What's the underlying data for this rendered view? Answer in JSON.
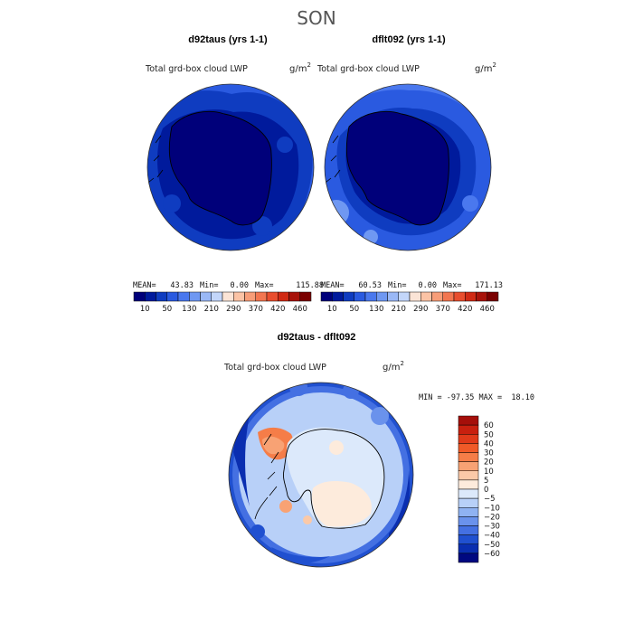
{
  "season": "SON",
  "chart_data": [
    {
      "type": "heatmap",
      "projection": "south-polar-stereographic",
      "title": "d92taus (yrs 1-1)",
      "variable": "Total grd-box cloud LWP",
      "units": "g/m",
      "units_sup": "2",
      "stats": {
        "mean": "43.83",
        "min": "0.00",
        "max": "115.88"
      },
      "stats_labels": {
        "mean": "MEAN=",
        "min": "Min=",
        "max": "Max="
      },
      "levels": [
        "10",
        "50",
        "130",
        "210",
        "290",
        "370",
        "420",
        "460"
      ],
      "colors": [
        "#00007a",
        "#001a9c",
        "#0f3cc0",
        "#2a5ae0",
        "#4a78ee",
        "#6f98f2",
        "#9ab8f6",
        "#c3d6fa",
        "#fbe4d6",
        "#fbc3a5",
        "#f79d78",
        "#f27650",
        "#e84e2e",
        "#d02a14",
        "#a8130a",
        "#7a0000"
      ]
    },
    {
      "type": "heatmap",
      "projection": "south-polar-stereographic",
      "title": "dflt092 (yrs 1-1)",
      "variable": "Total grd-box cloud LWP",
      "units": "g/m",
      "units_sup": "2",
      "stats": {
        "mean": "60.53",
        "min": "0.00",
        "max": "171.13"
      },
      "stats_labels": {
        "mean": "MEAN=",
        "min": "Min=",
        "max": "Max="
      },
      "levels": [
        "10",
        "50",
        "130",
        "210",
        "290",
        "370",
        "420",
        "460"
      ],
      "colors": [
        "#00007a",
        "#001a9c",
        "#0f3cc0",
        "#2a5ae0",
        "#4a78ee",
        "#6f98f2",
        "#9ab8f6",
        "#c3d6fa",
        "#fbe4d6",
        "#fbc3a5",
        "#f79d78",
        "#f27650",
        "#e84e2e",
        "#d02a14",
        "#a8130a",
        "#7a0000"
      ]
    },
    {
      "type": "heatmap",
      "projection": "south-polar-stereographic",
      "title": "d92taus - dflt092",
      "variable": "Total grd-box cloud LWP",
      "units": "g/m",
      "units_sup": "2",
      "stats_text": "MIN = -97.35 MAX =  18.10",
      "levels": [
        "60",
        "50",
        "40",
        "30",
        "20",
        "10",
        "5",
        "0",
        "−5",
        "−10",
        "−20",
        "−30",
        "−40",
        "−50",
        "−60"
      ],
      "colors": [
        "#a50f0a",
        "#c8200f",
        "#e03a1a",
        "#f05a28",
        "#f57d48",
        "#f8a274",
        "#fbc9a8",
        "#fdebdc",
        "#dce9fb",
        "#b8d0f8",
        "#8fb2f2",
        "#6a92ec",
        "#4470e2",
        "#2050d0",
        "#0a2eb0",
        "#000880"
      ]
    }
  ]
}
